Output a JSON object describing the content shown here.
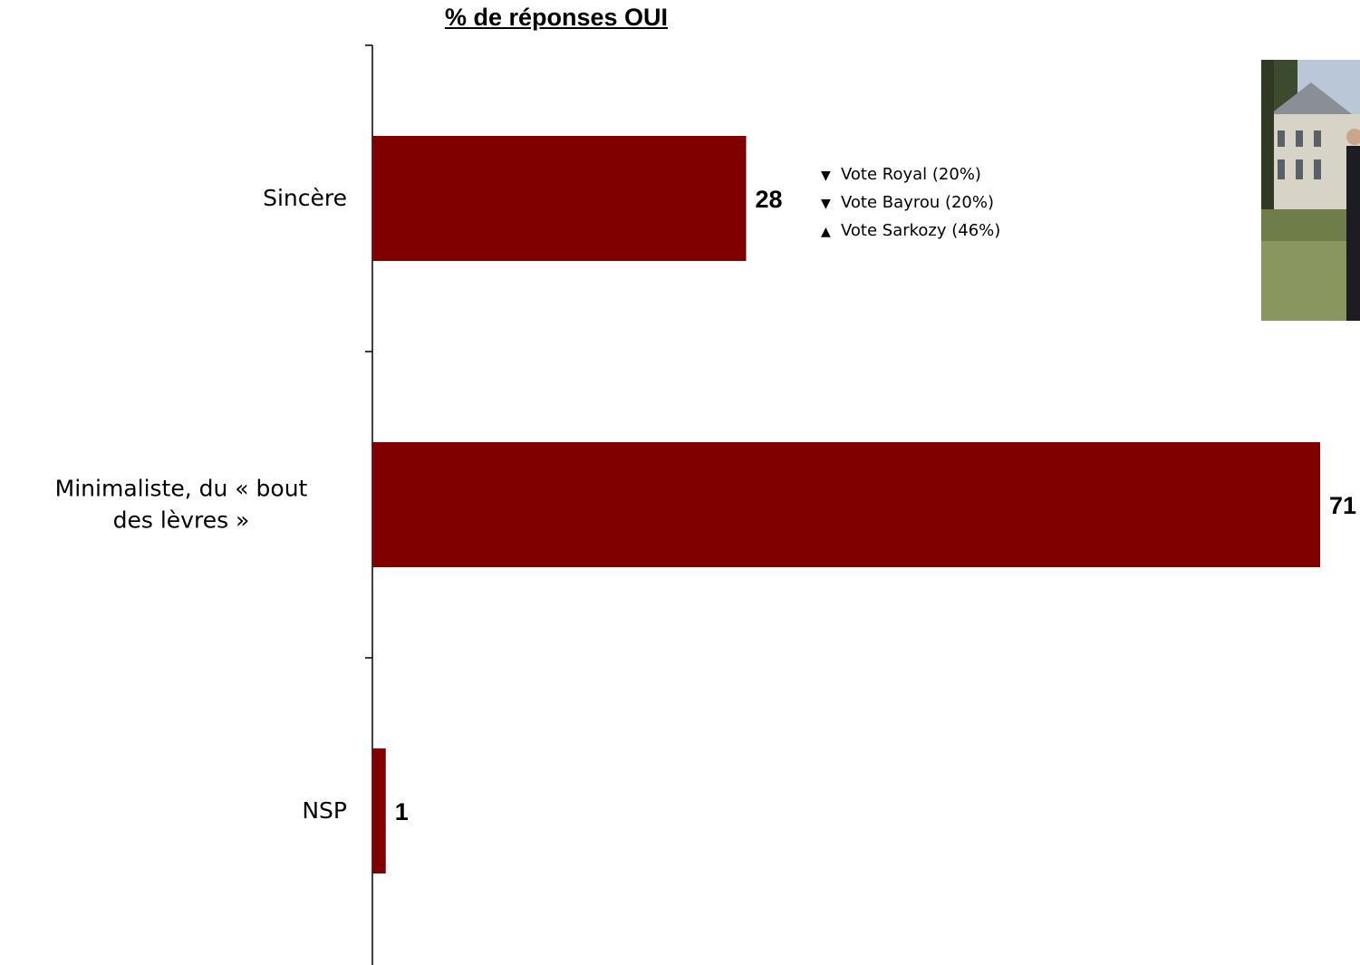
{
  "chart_data": {
    "type": "bar",
    "orientation": "horizontal",
    "title": "% de réponses OUI",
    "categories": [
      "Sincère",
      "Minimaliste, du « bout des lèvres »",
      "NSP"
    ],
    "category_lines": [
      [
        "Sincère"
      ],
      [
        "Minimaliste, du « bout",
        "des lèvres »"
      ],
      [
        "NSP"
      ]
    ],
    "values": [
      28,
      71,
      1
    ],
    "value_labels": [
      "28",
      "71",
      "1"
    ],
    "xlim": [
      0,
      71
    ],
    "bar_color": "#800000",
    "grid": false
  },
  "annotation": {
    "items": [
      {
        "marker": "▼",
        "direction": "down",
        "text": "Vote Royal (20%)"
      },
      {
        "marker": "▼",
        "direction": "down",
        "text": "Vote Bayrou (20%)"
      },
      {
        "marker": "▲",
        "direction": "up",
        "text": "Vote Sarkozy (46%)"
      }
    ]
  }
}
